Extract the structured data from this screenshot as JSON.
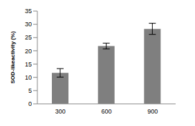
{
  "chart_data": {
    "type": "bar",
    "y_label": "SOD-likeactivity (%)",
    "categories": [
      "300",
      "600",
      "900"
    ],
    "values": [
      11.7,
      21.8,
      28.3
    ],
    "errors": [
      1.6,
      1.1,
      2.1
    ],
    "color": "#7f7f7f",
    "ylim": [
      0,
      35
    ],
    "yticks": [
      0,
      5,
      10,
      15,
      20,
      25,
      30,
      35
    ],
    "grid": false
  }
}
